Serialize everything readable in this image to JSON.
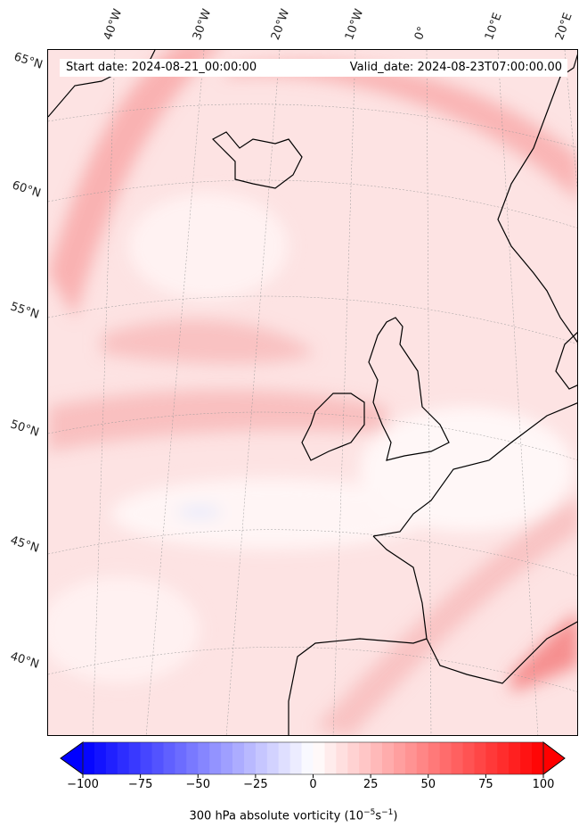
{
  "header": {
    "start_date": "Start date: 2024-08-21_00:00:00",
    "valid_date": "Valid_date: 2024-08-23T07:00:00.00"
  },
  "lat_labels": [
    "65°N",
    "60°N",
    "55°N",
    "50°N",
    "45°N",
    "40°N"
  ],
  "lon_labels": [
    "40°W",
    "30°W",
    "20°W",
    "10°W",
    "0°",
    "10°E",
    "20°E"
  ],
  "colorbar": {
    "min": -100,
    "max": 100,
    "step": 5,
    "ticks": [
      "−100",
      "−75",
      "−50",
      "−25",
      "0",
      "25",
      "50",
      "75",
      "100"
    ],
    "label_main": "300 hPa absolute vorticity (10",
    "label_exp1": "−5",
    "label_mid": "s",
    "label_exp2": "−1",
    "label_end": ")",
    "low_color": "#0000ff",
    "mid_color": "#ffffff",
    "high_color": "#ff0000"
  }
}
